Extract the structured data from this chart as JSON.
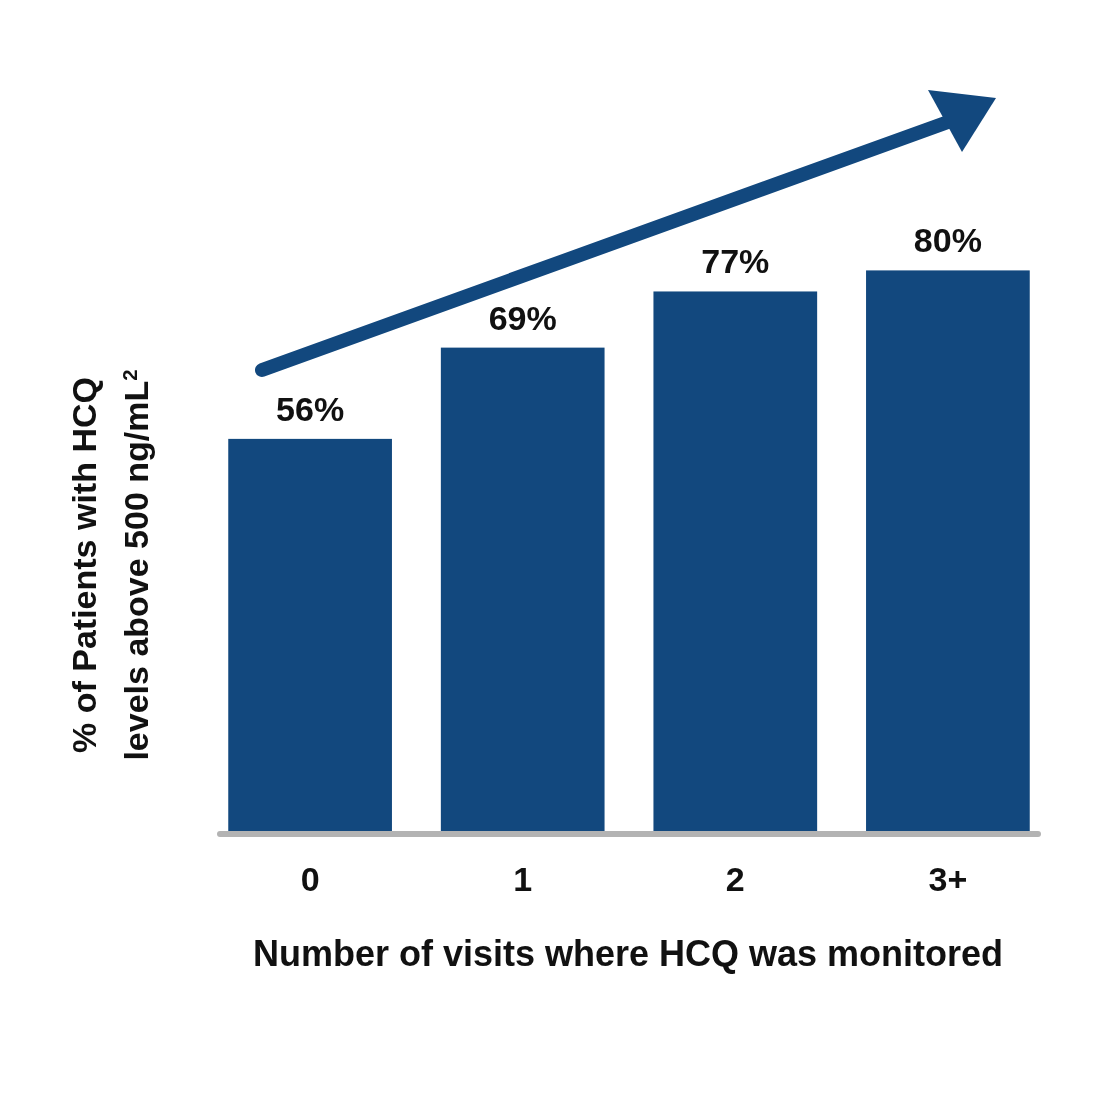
{
  "chart_data": {
    "type": "bar",
    "xlabel": "Number of visits where HCQ was monitored",
    "ylabel": "% of Patients with HCQ levels above 500 ng/mL$^{2}$",
    "categories": [
      "0",
      "1",
      "2",
      "3+"
    ],
    "values": [
      56,
      69,
      77,
      80
    ],
    "value_labels": [
      "56%",
      "69%",
      "77%",
      "80%"
    ],
    "color": "#12487e"
  }
}
